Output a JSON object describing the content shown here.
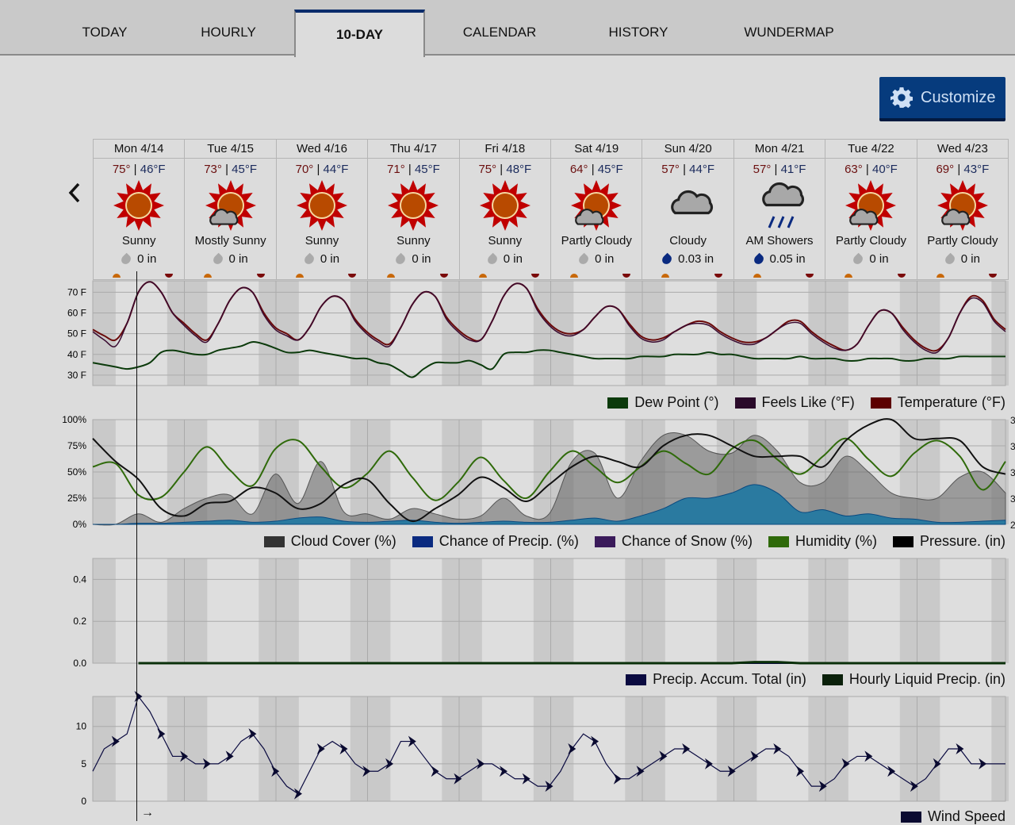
{
  "tabs": [
    {
      "label": "TODAY",
      "active": false
    },
    {
      "label": "HOURLY",
      "active": false
    },
    {
      "label": "10-DAY",
      "active": true
    },
    {
      "label": "CALENDAR",
      "active": false
    },
    {
      "label": "HISTORY",
      "active": false
    },
    {
      "label": "WUNDERMAP",
      "active": false
    }
  ],
  "customize_label": "Customize",
  "prev_label": "‹",
  "days": [
    {
      "date": "Mon 4/14",
      "hi": "75°",
      "lo": "46°F",
      "cond": "Sunny",
      "icon": "sun",
      "precip": "0 in",
      "wet": false
    },
    {
      "date": "Tue 4/15",
      "hi": "73°",
      "lo": "45°F",
      "cond": "Mostly Sunny",
      "icon": "sun-cloud",
      "precip": "0 in",
      "wet": false
    },
    {
      "date": "Wed 4/16",
      "hi": "70°",
      "lo": "44°F",
      "cond": "Sunny",
      "icon": "sun",
      "precip": "0 in",
      "wet": false
    },
    {
      "date": "Thu 4/17",
      "hi": "71°",
      "lo": "45°F",
      "cond": "Sunny",
      "icon": "sun",
      "precip": "0 in",
      "wet": false
    },
    {
      "date": "Fri 4/18",
      "hi": "75°",
      "lo": "48°F",
      "cond": "Sunny",
      "icon": "sun",
      "precip": "0 in",
      "wet": false
    },
    {
      "date": "Sat 4/19",
      "hi": "64°",
      "lo": "45°F",
      "cond": "Partly Cloudy",
      "icon": "sun-cloud",
      "precip": "0 in",
      "wet": false
    },
    {
      "date": "Sun 4/20",
      "hi": "57°",
      "lo": "44°F",
      "cond": "Cloudy",
      "icon": "cloud",
      "precip": "0.03 in",
      "wet": true
    },
    {
      "date": "Mon 4/21",
      "hi": "57°",
      "lo": "41°F",
      "cond": "AM Showers",
      "icon": "rain",
      "precip": "0.05 in",
      "wet": true
    },
    {
      "date": "Tue 4/22",
      "hi": "63°",
      "lo": "40°F",
      "cond": "Partly Cloudy",
      "icon": "sun-cloud",
      "precip": "0 in",
      "wet": false
    },
    {
      "date": "Wed 4/23",
      "hi": "69°",
      "lo": "43°F",
      "cond": "Partly Cloudy",
      "icon": "sun-cloud",
      "precip": "0 in",
      "wet": false
    }
  ],
  "colors": {
    "temperature": "#5c0000",
    "feels_like": "#2a0a2a",
    "dew_point": "#0b3a0b",
    "cloud": "#333333",
    "precip": "#0a2a80",
    "snow": "#3a1a5a",
    "humidity": "#2f6a0a",
    "pressure": "#000000",
    "accum": "#0a0a40",
    "hourly_precip": "#0a200a",
    "wind": "#0a0a30"
  },
  "chart_data": [
    {
      "type": "line",
      "id": "temp",
      "x_unit": "3h steps from Mon 4/14 00:00",
      "yticks": [
        "30 F",
        "40 F",
        "50 F",
        "60 F",
        "70 F"
      ],
      "ytick_values": [
        30,
        40,
        50,
        60,
        70
      ],
      "ylim": [
        25,
        75.5
      ],
      "legend": [
        "Dew Point (°)",
        "Feels Like (°F)",
        "Temperature (°F)"
      ],
      "series": [
        {
          "name": "Temperature (°F)",
          "values": [
            52,
            49,
            47,
            55,
            70,
            75,
            70,
            60,
            55,
            50,
            47,
            55,
            66,
            72,
            70,
            60,
            53,
            50,
            47,
            53,
            63,
            68,
            66,
            57,
            51,
            47,
            45,
            53,
            64,
            70,
            68,
            58,
            52,
            48,
            47,
            56,
            68,
            74,
            72,
            62,
            55,
            51,
            50,
            52,
            58,
            63,
            62,
            55,
            49,
            47,
            48,
            51,
            54,
            56,
            55,
            51,
            48,
            46,
            46,
            48,
            52,
            56,
            56,
            51,
            47,
            44,
            42,
            45,
            54,
            61,
            60,
            53,
            47,
            43,
            42,
            48,
            60,
            68,
            66,
            57,
            52
          ]
        },
        {
          "name": "Feels Like (°F)",
          "values": [
            51,
            47,
            44,
            55,
            70,
            75,
            70,
            60,
            54,
            49,
            46,
            55,
            66,
            72,
            70,
            59,
            52,
            49,
            47,
            53,
            63,
            68,
            66,
            56,
            50,
            46,
            44,
            53,
            64,
            70,
            68,
            57,
            51,
            47,
            47,
            56,
            68,
            74,
            72,
            61,
            54,
            50,
            49,
            52,
            58,
            63,
            62,
            54,
            48,
            46,
            47,
            51,
            54,
            55,
            54,
            50,
            47,
            45,
            45,
            48,
            52,
            55,
            55,
            50,
            46,
            43,
            42,
            45,
            54,
            61,
            60,
            52,
            46,
            42,
            41,
            48,
            60,
            67,
            65,
            56,
            51
          ]
        },
        {
          "name": "Dew Point (°)",
          "values": [
            36,
            35,
            34,
            33,
            34,
            36,
            41,
            42,
            41,
            40,
            40,
            42,
            43,
            44,
            46,
            45,
            43,
            41,
            41,
            42,
            41,
            40,
            39,
            38,
            38,
            36,
            35,
            32,
            29,
            33,
            36,
            36,
            36,
            37,
            35,
            33,
            40,
            41,
            41,
            42,
            42,
            41,
            40,
            39,
            38,
            38,
            38,
            38,
            39,
            39,
            39,
            40,
            40,
            40,
            41,
            40,
            40,
            39,
            38,
            38,
            38,
            38,
            39,
            38,
            38,
            38,
            37,
            37,
            38,
            38,
            38,
            37,
            37,
            38,
            38,
            38,
            39,
            39,
            39,
            39,
            39
          ]
        }
      ]
    },
    {
      "type": "line",
      "id": "atmos",
      "x_unit": "6h steps from Mon 4/14 00:00",
      "yticks": [
        "0%",
        "25%",
        "50%",
        "75%",
        "100%"
      ],
      "ytick_values": [
        0,
        25,
        50,
        75,
        100
      ],
      "ylim": [
        0,
        100
      ],
      "right_ticks": [
        "2",
        "3",
        "3",
        "3",
        "3"
      ],
      "legend": [
        "Cloud Cover (%)",
        "Chance of Precip. (%)",
        "Chance of Snow (%)",
        "Humidity (%)",
        "Pressure. (in)"
      ],
      "series": [
        {
          "name": "Cloud Cover (%)",
          "kind": "area",
          "values": [
            0,
            0,
            10,
            2,
            15,
            25,
            28,
            10,
            48,
            20,
            60,
            12,
            10,
            5,
            15,
            10,
            5,
            8,
            25,
            8,
            10,
            60,
            68,
            25,
            60,
            85,
            85,
            70,
            68,
            85,
            70,
            40,
            40,
            65,
            50,
            30,
            25,
            25,
            45,
            50,
            30
          ]
        },
        {
          "name": "Chance of Precip. (%)",
          "kind": "area",
          "values": [
            0,
            0,
            1,
            1,
            2,
            3,
            4,
            2,
            3,
            6,
            7,
            3,
            2,
            3,
            4,
            2,
            1,
            2,
            3,
            2,
            2,
            4,
            6,
            3,
            8,
            15,
            25,
            25,
            30,
            38,
            30,
            12,
            14,
            8,
            10,
            6,
            5,
            2,
            2,
            3,
            4
          ]
        },
        {
          "name": "Humidity (%)",
          "kind": "line",
          "values": [
            55,
            58,
            28,
            26,
            50,
            74,
            52,
            37,
            72,
            80,
            55,
            35,
            48,
            70,
            45,
            23,
            40,
            64,
            42,
            25,
            50,
            70,
            55,
            40,
            55,
            70,
            58,
            48,
            72,
            80,
            62,
            48,
            65,
            82,
            62,
            46,
            68,
            80,
            65,
            33,
            60
          ]
        },
        {
          "name": "Pressure. (in)",
          "kind": "line",
          "values": [
            82,
            60,
            43,
            15,
            8,
            20,
            22,
            35,
            30,
            15,
            20,
            38,
            43,
            20,
            3,
            15,
            28,
            45,
            35,
            22,
            38,
            55,
            65,
            60,
            55,
            75,
            85,
            85,
            75,
            65,
            65,
            65,
            55,
            80,
            95,
            100,
            82,
            82,
            80,
            55,
            48
          ]
        }
      ]
    },
    {
      "type": "line",
      "id": "precip",
      "yticks": [
        "0.0",
        "0.2",
        "0.4"
      ],
      "ytick_values": [
        0,
        0.2,
        0.4
      ],
      "ylim": [
        0,
        0.5
      ],
      "legend": [
        "Precip. Accum. Total (in)",
        "Hourly Liquid Precip. (in)"
      ],
      "series": [
        {
          "name": "Precip. Accum. Total (in)",
          "values": [
            null,
            null,
            0,
            0,
            0,
            0,
            0,
            0,
            0,
            0,
            0,
            0,
            0,
            0,
            0,
            0,
            0,
            0,
            0,
            0,
            0,
            0,
            0,
            0,
            0,
            0,
            0,
            0,
            0,
            0,
            0,
            0,
            0,
            0,
            0,
            0,
            0,
            0,
            0,
            0,
            0
          ]
        },
        {
          "name": "Hourly Liquid Precip. (in)",
          "values": [
            null,
            null,
            0,
            0,
            0,
            0,
            0,
            0,
            0,
            0,
            0,
            0,
            0,
            0,
            0,
            0,
            0,
            0,
            0,
            0,
            0,
            0,
            0,
            0,
            0,
            0,
            0,
            0,
            0,
            0.005,
            0.005,
            0,
            0,
            0,
            0,
            0,
            0,
            0,
            0,
            0,
            0
          ]
        }
      ]
    },
    {
      "type": "line",
      "id": "wind",
      "yticks": [
        "0",
        "5",
        "10"
      ],
      "ytick_values": [
        0,
        5,
        10
      ],
      "ylim": [
        0,
        14
      ],
      "legend": [
        "Wind Speed"
      ],
      "series": [
        {
          "name": "Wind Speed",
          "values": [
            4,
            7,
            8,
            9,
            14,
            12,
            9,
            6,
            6,
            5,
            5,
            5,
            6,
            8,
            9,
            7,
            4,
            2,
            1,
            4,
            7,
            8,
            7,
            5,
            4,
            4,
            5,
            8,
            8,
            6,
            4,
            3,
            3,
            4,
            5,
            5,
            4,
            3,
            3,
            2,
            2,
            4,
            7,
            9,
            8,
            5,
            3,
            3,
            4,
            5,
            6,
            7,
            7,
            6,
            5,
            4,
            4,
            5,
            6,
            7,
            7,
            6,
            4,
            2,
            2,
            3,
            5,
            6,
            6,
            5,
            4,
            3,
            2,
            3,
            5,
            7,
            7,
            5,
            5,
            5,
            5
          ]
        }
      ]
    }
  ]
}
